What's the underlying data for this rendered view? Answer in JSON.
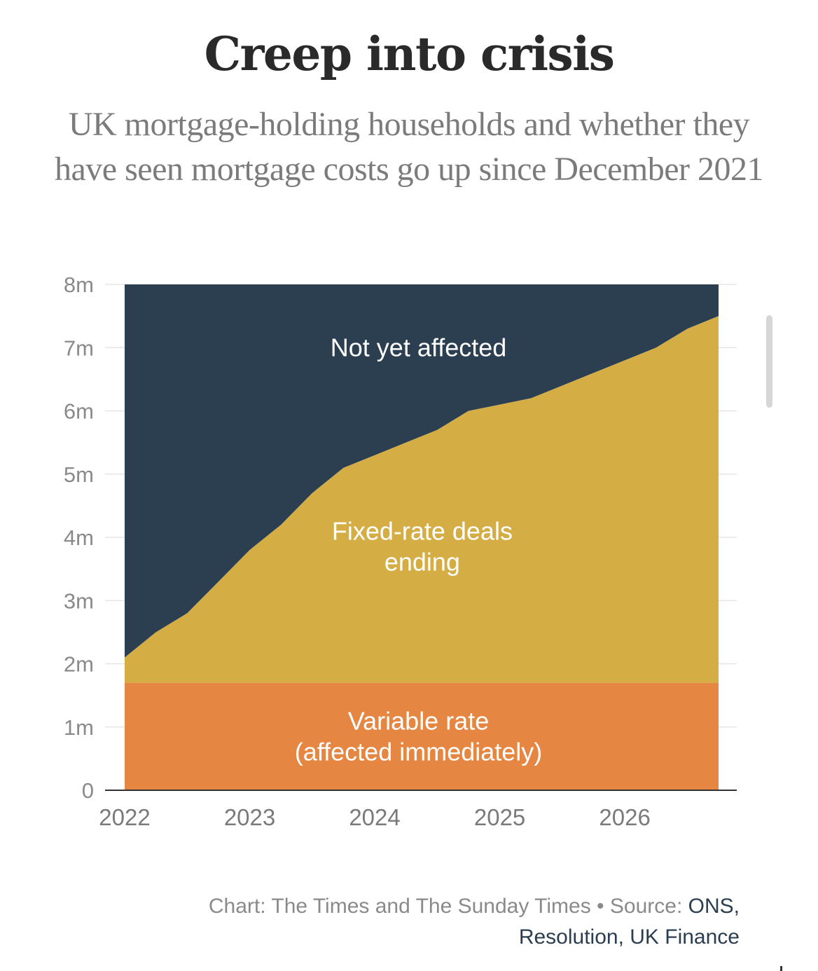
{
  "title": "Creep into crisis",
  "subtitle": "UK mortgage-holding households and whether they have seen mortgage costs go up since December 2021",
  "chart_data": {
    "type": "area",
    "stacked": true,
    "x": [
      2022.0,
      2022.25,
      2022.5,
      2022.75,
      2023.0,
      2023.25,
      2023.5,
      2023.75,
      2024.0,
      2024.25,
      2024.5,
      2024.75,
      2025.0,
      2025.25,
      2025.5,
      2025.75,
      2026.0,
      2026.25,
      2026.5,
      2026.75
    ],
    "xlim": [
      2022.0,
      2026.75
    ],
    "xticks": [
      "2022",
      "2023",
      "2024",
      "2025",
      "2026"
    ],
    "xtick_values": [
      2022,
      2023,
      2024,
      2025,
      2026
    ],
    "ylim": [
      0,
      8
    ],
    "yticks": [
      "0",
      "1m",
      "2m",
      "3m",
      "4m",
      "5m",
      "6m",
      "7m",
      "8m"
    ],
    "ytick_values": [
      0,
      1,
      2,
      3,
      4,
      5,
      6,
      7,
      8
    ],
    "grid": "horizontal",
    "series": [
      {
        "name": "Variable rate (affected immediately)",
        "label_lines": [
          "Variable rate",
          "(affected immediately)"
        ],
        "color": "#E58642",
        "label_color": "#ffffff",
        "values": [
          1.7,
          1.7,
          1.7,
          1.7,
          1.7,
          1.7,
          1.7,
          1.7,
          1.7,
          1.7,
          1.7,
          1.7,
          1.7,
          1.7,
          1.7,
          1.7,
          1.7,
          1.7,
          1.7,
          1.7
        ]
      },
      {
        "name": "Fixed-rate deals ending",
        "label_lines": [
          "Fixed-rate deals",
          "ending"
        ],
        "color": "#D4AD45",
        "label_color": "#ffffff",
        "values": [
          0.4,
          0.8,
          1.1,
          1.6,
          2.1,
          2.5,
          3.0,
          3.4,
          3.6,
          3.8,
          4.0,
          4.3,
          4.4,
          4.5,
          4.7,
          4.9,
          5.1,
          5.3,
          5.6,
          5.8
        ]
      },
      {
        "name": "Not yet affected",
        "label_lines": [
          "Not yet affected"
        ],
        "color": "#2C3F50",
        "label_color": "#ffffff",
        "values": [
          5.9,
          5.5,
          5.2,
          4.7,
          4.2,
          3.8,
          3.3,
          2.9,
          2.7,
          2.5,
          2.3,
          2.0,
          1.9,
          1.8,
          1.6,
          1.4,
          1.2,
          1.0,
          0.7,
          0.5
        ]
      }
    ],
    "colors": {
      "grid": "#e6e6e6",
      "axis": "#333333"
    }
  },
  "footer": {
    "chart_credit": "Chart: The Times and The Sunday Times",
    "separator": " • ",
    "source_prefix": "Source: ",
    "source_first": "ONS,",
    "source_rest": "Resolution, UK Finance"
  }
}
